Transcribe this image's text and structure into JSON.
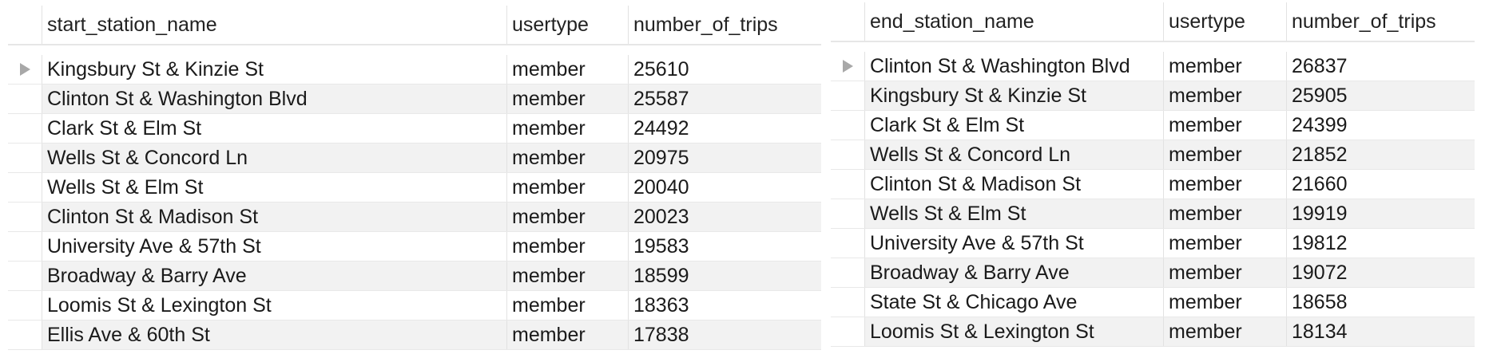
{
  "left_grid": {
    "columns": [
      "start_station_name",
      "usertype",
      "number_of_trips"
    ],
    "rows": [
      [
        "Kingsbury St & Kinzie St",
        "member",
        "25610"
      ],
      [
        "Clinton St & Washington Blvd",
        "member",
        "25587"
      ],
      [
        "Clark St & Elm St",
        "member",
        "24492"
      ],
      [
        "Wells St & Concord Ln",
        "member",
        "20975"
      ],
      [
        "Wells St & Elm St",
        "member",
        "20040"
      ],
      [
        "Clinton St & Madison St",
        "member",
        "20023"
      ],
      [
        "University Ave & 57th St",
        "member",
        "19583"
      ],
      [
        "Broadway & Barry Ave",
        "member",
        "18599"
      ],
      [
        "Loomis St & Lexington St",
        "member",
        "18363"
      ],
      [
        "Ellis Ave & 60th St",
        "member",
        "17838"
      ]
    ]
  },
  "right_grid": {
    "columns": [
      "end_station_name",
      "usertype",
      "number_of_trips"
    ],
    "rows": [
      [
        "Clinton St & Washington Blvd",
        "member",
        "26837"
      ],
      [
        "Kingsbury St & Kinzie St",
        "member",
        "25905"
      ],
      [
        "Clark St & Elm St",
        "member",
        "24399"
      ],
      [
        "Wells St & Concord Ln",
        "member",
        "21852"
      ],
      [
        "Clinton St & Madison St",
        "member",
        "21660"
      ],
      [
        "Wells St & Elm St",
        "member",
        "19919"
      ],
      [
        "University Ave & 57th St",
        "member",
        "19812"
      ],
      [
        "Broadway & Barry Ave",
        "member",
        "19072"
      ],
      [
        "State St & Chicago Ave",
        "member",
        "18658"
      ],
      [
        "Loomis St & Lexington St",
        "member",
        "18134"
      ]
    ]
  },
  "icons": {
    "current_row_indicator": "play-arrow-icon"
  },
  "colors": {
    "alt_row": "#f2f2f2",
    "indicator": "#a8a8a8"
  }
}
